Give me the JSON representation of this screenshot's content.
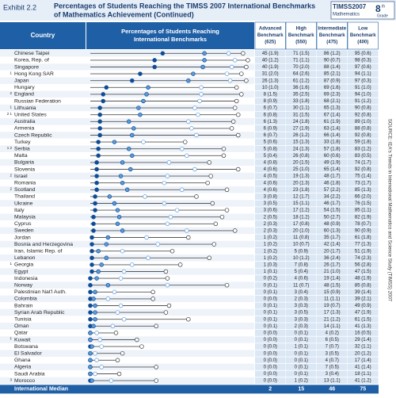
{
  "header": {
    "exhibit": "Exhibit 2.2",
    "title": [
      "Percentages of Students Reaching the TIMSS 2007 International Benchmarks",
      "of Mathematics Achievement (Continued)"
    ],
    "logo": {
      "name": "TIMSS2007",
      "subject": "Mathematics",
      "grade": "8",
      "grade_suffix": "th",
      "grade_label": "Grade"
    }
  },
  "columns": {
    "country": "Country",
    "plot": [
      "Percentages of Students Reaching",
      "International Benchmarks"
    ],
    "benchmarks": [
      [
        "Advanced",
        "Benchmark",
        "(625)"
      ],
      [
        "High",
        "Benchmark",
        "(550)"
      ],
      [
        "Intermediate",
        "Benchmark",
        "(475)"
      ],
      [
        "Low",
        "Benchmark",
        "(400)"
      ]
    ]
  },
  "rows": [
    {
      "note": null,
      "country": "Chinese Taipei",
      "values": [
        45,
        71,
        86,
        95
      ],
      "value_labels": [
        "45 (1.9)",
        "71 (1.5)",
        "86 (1.2)",
        "95 (0.6)"
      ]
    },
    {
      "note": null,
      "country": "Korea, Rep. of",
      "values": [
        40,
        71,
        90,
        98
      ],
      "value_labels": [
        "40 (1.2)",
        "71 (1.1)",
        "90 (0.7)",
        "98 (0.3)"
      ]
    },
    {
      "note": null,
      "country": "Singapore",
      "values": [
        40,
        70,
        88,
        97
      ],
      "value_labels": [
        "40 (1.9)",
        "70 (2.0)",
        "88 (1.4)",
        "97 (0.6)"
      ]
    },
    {
      "note": "1",
      "country": "Hong Kong SAR",
      "values": [
        31,
        64,
        85,
        94
      ],
      "value_labels": [
        "31 (2.0)",
        "64 (2.6)",
        "85 (2.1)",
        "94 (1.1)"
      ]
    },
    {
      "note": null,
      "country": "Japan",
      "values": [
        26,
        61,
        87,
        97
      ],
      "value_labels": [
        "26 (1.3)",
        "61 (1.2)",
        "87 (0.9)",
        "97 (0.3)"
      ]
    },
    {
      "note": null,
      "country": "Hungary",
      "values": [
        10,
        36,
        69,
        91
      ],
      "value_labels": [
        "10 (1.0)",
        "36 (1.6)",
        "69 (1.6)",
        "91 (1.0)"
      ]
    },
    {
      "note": "2",
      "country": "England",
      "values": [
        8,
        35,
        69,
        94
      ],
      "value_labels": [
        "8 (1.5)",
        "35 (2.5)",
        "69 (2.3)",
        "94 (1.0)"
      ]
    },
    {
      "note": null,
      "country": "Russian Federation",
      "values": [
        8,
        33,
        68,
        91
      ],
      "value_labels": [
        "8 (0.9)",
        "33 (1.8)",
        "68 (2.1)",
        "91 (1.2)"
      ]
    },
    {
      "note": "1",
      "country": "Lithuania",
      "values": [
        6,
        30,
        65,
        90
      ],
      "value_labels": [
        "6 (0.7)",
        "30 (1.1)",
        "65 (1.3)",
        "90 (0.8)"
      ]
    },
    {
      "note": "2 1",
      "country": "United States",
      "values": [
        6,
        31,
        67,
        92
      ],
      "value_labels": [
        "6 (0.8)",
        "31 (1.5)",
        "67 (1.4)",
        "92 (0.8)"
      ]
    },
    {
      "note": null,
      "country": "Australia",
      "values": [
        6,
        24,
        61,
        89
      ],
      "value_labels": [
        "6 (1.3)",
        "24 (1.8)",
        "61 (1.9)",
        "89 (1.0)"
      ]
    },
    {
      "note": null,
      "country": "Armenia",
      "values": [
        6,
        27,
        63,
        88
      ],
      "value_labels": [
        "6 (0.9)",
        "27 (1.9)",
        "63 (1.4)",
        "88 (0.8)"
      ]
    },
    {
      "note": null,
      "country": "Czech Republic",
      "values": [
        6,
        26,
        66,
        92
      ],
      "value_labels": [
        "6 (0.7)",
        "26 (1.2)",
        "66 (1.4)",
        "92 (0.8)"
      ]
    },
    {
      "note": null,
      "country": "Turkey",
      "values": [
        5,
        15,
        33,
        59
      ],
      "value_labels": [
        "5 (0.6)",
        "15 (1.3)",
        "33 (1.8)",
        "59 (1.8)"
      ]
    },
    {
      "note": "1 2",
      "country": "Serbia",
      "values": [
        5,
        24,
        57,
        83
      ],
      "value_labels": [
        "5 (0.8)",
        "24 (1.3)",
        "57 (1.8)",
        "83 (1.2)"
      ]
    },
    {
      "note": null,
      "country": "Malta",
      "values": [
        5,
        26,
        60,
        83
      ],
      "value_labels": [
        "5 (0.4)",
        "26 (0.8)",
        "60 (0.6)",
        "83 (0.5)"
      ]
    },
    {
      "note": null,
      "country": "Bulgaria",
      "values": [
        4,
        20,
        49,
        74
      ],
      "value_labels": [
        "4 (0.8)",
        "20 (1.5)",
        "49 (1.9)",
        "74 (1.7)"
      ]
    },
    {
      "note": null,
      "country": "Slovenia",
      "values": [
        4,
        25,
        65,
        92
      ],
      "value_labels": [
        "4 (0.6)",
        "25 (1.0)",
        "65 (1.4)",
        "92 (0.8)"
      ]
    },
    {
      "note": "2",
      "country": "Israel",
      "values": [
        4,
        19,
        48,
        75
      ],
      "value_labels": [
        "4 (0.5)",
        "19 (1.3)",
        "48 (1.7)",
        "75 (1.4)"
      ]
    },
    {
      "note": null,
      "country": "Romania",
      "values": [
        4,
        20,
        46,
        73
      ],
      "value_labels": [
        "4 (0.6)",
        "20 (1.3)",
        "46 (1.8)",
        "73 (1.7)"
      ]
    },
    {
      "note": "2",
      "country": "Scotland",
      "values": [
        4,
        23,
        57,
        85
      ],
      "value_labels": [
        "4 (0.6)",
        "23 (1.8)",
        "57 (2.2)",
        "85 (1.3)"
      ]
    },
    {
      "note": null,
      "country": "Thailand",
      "values": [
        3,
        12,
        34,
        66
      ],
      "value_labels": [
        "3 (0.8)",
        "12 (1.7)",
        "34 (2.2)",
        "66 (2.0)"
      ]
    },
    {
      "note": null,
      "country": "Ukraine",
      "values": [
        3,
        15,
        46,
        76
      ],
      "value_labels": [
        "3 (0.5)",
        "15 (1.1)",
        "46 (1.7)",
        "76 (1.5)"
      ]
    },
    {
      "note": null,
      "country": "Italy",
      "values": [
        3,
        17,
        54,
        85
      ],
      "value_labels": [
        "3 (0.6)",
        "17 (1.2)",
        "54 (1.5)",
        "85 (1.1)"
      ]
    },
    {
      "note": null,
      "country": "Malaysia",
      "values": [
        2,
        18,
        50,
        82
      ],
      "value_labels": [
        "2 (0.5)",
        "18 (1.2)",
        "50 (2.7)",
        "82 (1.9)"
      ]
    },
    {
      "note": null,
      "country": "Cyprus",
      "values": [
        2,
        17,
        48,
        78
      ],
      "value_labels": [
        "2 (0.3)",
        "17 (0.8)",
        "48 (0.9)",
        "78 (0.7)"
      ]
    },
    {
      "note": null,
      "country": "Sweden",
      "values": [
        2,
        20,
        60,
        90
      ],
      "value_labels": [
        "2 (0.3)",
        "20 (1.0)",
        "60 (1.3)",
        "90 (0.9)"
      ]
    },
    {
      "note": null,
      "country": "Jordan",
      "values": [
        1,
        11,
        35,
        61
      ],
      "value_labels": [
        "1 (0.2)",
        "11 (0.8)",
        "35 (1.7)",
        "61 (1.8)"
      ]
    },
    {
      "note": null,
      "country": "Bosnia and Herzegovina",
      "values": [
        1,
        10,
        42,
        77
      ],
      "value_labels": [
        "1 (0.2)",
        "10 (0.7)",
        "42 (1.4)",
        "77 (1.3)"
      ]
    },
    {
      "note": null,
      "country": "Iran, Islamic Rep. of",
      "values": [
        1,
        5,
        20,
        51
      ],
      "value_labels": [
        "1 (0.2)",
        "5 (0.9)",
        "20 (1.7)",
        "51 (1.9)"
      ]
    },
    {
      "note": null,
      "country": "Lebanon",
      "values": [
        1,
        10,
        36,
        74
      ],
      "value_labels": [
        "1 (0.2)",
        "10 (1.2)",
        "36 (2.4)",
        "74 (2.3)"
      ]
    },
    {
      "note": "1",
      "country": "Georgia",
      "values": [
        1,
        7,
        26,
        56
      ],
      "value_labels": [
        "1 (0.3)",
        "7 (0.8)",
        "26 (1.7)",
        "56 (2.8)"
      ]
    },
    {
      "note": null,
      "country": "Egypt",
      "values": [
        1,
        5,
        21,
        47
      ],
      "value_labels": [
        "1 (0.1)",
        "5 (0.4)",
        "21 (1.0)",
        "47 (1.5)"
      ]
    },
    {
      "note": null,
      "country": "Indonesia",
      "values": [
        0,
        4,
        19,
        48
      ],
      "value_labels": [
        "0 (0.2)",
        "4 (0.6)",
        "19 (1.4)",
        "48 (1.9)"
      ]
    },
    {
      "note": null,
      "country": "Norway",
      "values": [
        0,
        11,
        48,
        85
      ],
      "value_labels": [
        "0 (0.1)",
        "11 (0.7)",
        "48 (1.5)",
        "85 (0.8)"
      ]
    },
    {
      "note": null,
      "country": "Palestinian Nat'l Auth.",
      "values": [
        0,
        3,
        15,
        39
      ],
      "value_labels": [
        "0 (0.1)",
        "3 (0.4)",
        "15 (0.9)",
        "39 (1.4)"
      ]
    },
    {
      "note": null,
      "country": "Colombia",
      "values": [
        0,
        2,
        11,
        39
      ],
      "value_labels": [
        "0 (0.0)",
        "2 (0.3)",
        "11 (1.1)",
        "39 (2.1)"
      ]
    },
    {
      "note": null,
      "country": "Bahrain",
      "values": [
        0,
        3,
        19,
        49
      ],
      "value_labels": [
        "0 (0.1)",
        "3 (0.3)",
        "19 (0.7)",
        "49 (0.9)"
      ]
    },
    {
      "note": null,
      "country": "Syrian Arab Republic",
      "values": [
        0,
        3,
        17,
        47
      ],
      "value_labels": [
        "0 (0.1)",
        "3 (0.5)",
        "17 (1.3)",
        "47 (1.9)"
      ]
    },
    {
      "note": null,
      "country": "Tunisia",
      "values": [
        0,
        3,
        21,
        61
      ],
      "value_labels": [
        "0 (0.1)",
        "3 (0.3)",
        "21 (1.2)",
        "61 (1.5)"
      ]
    },
    {
      "note": null,
      "country": "Oman",
      "values": [
        0,
        2,
        14,
        41
      ],
      "value_labels": [
        "0 (0.1)",
        "2 (0.3)",
        "14 (1.1)",
        "41 (1.3)"
      ]
    },
    {
      "note": null,
      "country": "Qatar",
      "values": [
        0,
        0,
        4,
        16
      ],
      "value_labels": [
        "0 (0.0)",
        "0 (0.1)",
        "4 (0.2)",
        "16 (0.5)"
      ]
    },
    {
      "note": "‡",
      "country": "Kuwait",
      "values": [
        0,
        0,
        6,
        29
      ],
      "value_labels": [
        "0 (0.0)",
        "0 (0.1)",
        "6 (0.5)",
        "29 (1.4)"
      ]
    },
    {
      "note": null,
      "country": "Botswana",
      "values": [
        0,
        1,
        7,
        32
      ],
      "value_labels": [
        "0 (0.0)",
        "1 (0.1)",
        "7 (0.7)",
        "32 (1.1)"
      ]
    },
    {
      "note": null,
      "country": "El Salvador",
      "values": [
        0,
        0,
        3,
        20
      ],
      "value_labels": [
        "0 (0.0)",
        "0 (0.1)",
        "3 (0.5)",
        "20 (1.2)"
      ]
    },
    {
      "note": null,
      "country": "Ghana",
      "values": [
        0,
        0,
        4,
        17
      ],
      "value_labels": [
        "0 (0.0)",
        "0 (0.1)",
        "4 (0.7)",
        "17 (1.4)"
      ]
    },
    {
      "note": null,
      "country": "Algeria",
      "values": [
        0,
        0,
        7,
        41
      ],
      "value_labels": [
        "0 (0.0)",
        "0 (0.1)",
        "7 (0.5)",
        "41 (1.4)"
      ]
    },
    {
      "note": null,
      "country": "Saudi Arabia",
      "values": [
        0,
        0,
        3,
        18
      ],
      "value_labels": [
        "0 (0.0)",
        "0 (0.1)",
        "3 (0.4)",
        "18 (1.1)"
      ]
    },
    {
      "note": "3",
      "country": "Morocco",
      "values": [
        0,
        1,
        13,
        41
      ],
      "value_labels": [
        "0 (0.0)",
        "1 (0.2)",
        "13 (1.1)",
        "41 (1.2)"
      ]
    }
  ],
  "median": {
    "label": "International Median",
    "values": [
      2,
      15,
      46,
      75
    ]
  },
  "scale": {
    "xlim": [
      0,
      100
    ]
  },
  "colors": [
    "#0f4c97",
    "#5d9ad6",
    "#ffffff",
    "#ffffff"
  ],
  "source": "SOURCE: IEA's Trends in International Mathematics and Science Study (TIMSS) 2007"
}
